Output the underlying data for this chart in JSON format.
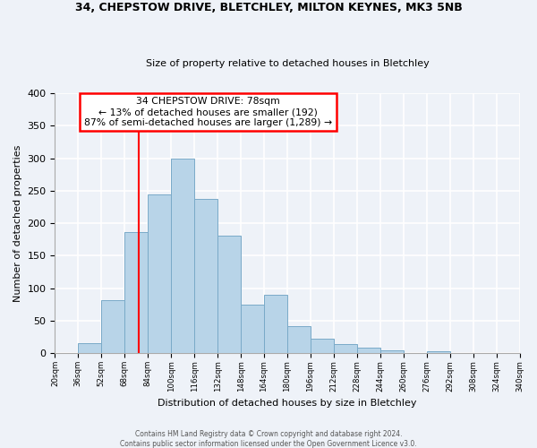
{
  "title": "34, CHEPSTOW DRIVE, BLETCHLEY, MILTON KEYNES, MK3 5NB",
  "subtitle": "Size of property relative to detached houses in Bletchley",
  "xlabel": "Distribution of detached houses by size in Bletchley",
  "ylabel": "Number of detached properties",
  "bin_edges": [
    20,
    36,
    52,
    68,
    84,
    100,
    116,
    132,
    148,
    164,
    180,
    196,
    212,
    228,
    244,
    260,
    276,
    292,
    308,
    324,
    340
  ],
  "counts": [
    0,
    15,
    82,
    187,
    244,
    300,
    238,
    181,
    75,
    90,
    42,
    22,
    14,
    8,
    5,
    0,
    3,
    0,
    0,
    0
  ],
  "bar_color": "#b8d4e8",
  "bar_edge_color": "#7aaac8",
  "property_line_x": 78,
  "annotation_line1": "34 CHEPSTOW DRIVE: 78sqm",
  "annotation_line2": "← 13% of detached houses are smaller (192)",
  "annotation_line3": "87% of semi-detached houses are larger (1,289) →",
  "annotation_box_color": "#ff0000",
  "background_color": "#eef2f8",
  "grid_color": "#ffffff",
  "footer_line1": "Contains HM Land Registry data © Crown copyright and database right 2024.",
  "footer_line2": "Contains public sector information licensed under the Open Government Licence v3.0.",
  "ylim": [
    0,
    400
  ],
  "xlim": [
    20,
    340
  ],
  "yticks": [
    0,
    50,
    100,
    150,
    200,
    250,
    300,
    350,
    400
  ]
}
